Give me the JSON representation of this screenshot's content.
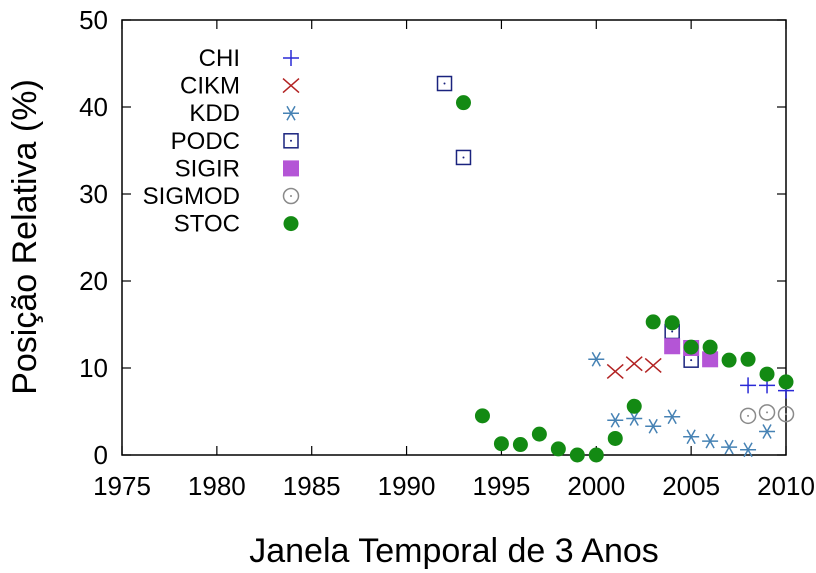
{
  "chart_data": {
    "type": "scatter",
    "xlabel": "Janela Temporal de 3 Anos",
    "ylabel": "Posição Relativa (%)",
    "xlim": [
      1975,
      2010
    ],
    "ylim": [
      0,
      50
    ],
    "xticks": [
      1975,
      1980,
      1985,
      1990,
      1995,
      2000,
      2005,
      2010
    ],
    "yticks": [
      0,
      10,
      20,
      30,
      40,
      50
    ],
    "grid": false,
    "legend_position": "top-left",
    "series": [
      {
        "name": "CHI",
        "marker": "plus",
        "color": "#2a2ad6",
        "points": [
          [
            2008,
            8.0
          ],
          [
            2009,
            8.0
          ],
          [
            2010,
            7.4
          ]
        ]
      },
      {
        "name": "CIKM",
        "marker": "cross",
        "color": "#b22222",
        "points": [
          [
            2001,
            9.6
          ],
          [
            2002,
            10.5
          ],
          [
            2003,
            10.3
          ]
        ]
      },
      {
        "name": "KDD",
        "marker": "asterisk",
        "color": "#4682b4",
        "points": [
          [
            2000,
            11.0
          ],
          [
            2001,
            4.0
          ],
          [
            2002,
            4.2
          ],
          [
            2003,
            3.3
          ],
          [
            2004,
            4.4
          ],
          [
            2005,
            2.1
          ],
          [
            2006,
            1.6
          ],
          [
            2007,
            0.9
          ],
          [
            2008,
            0.6
          ],
          [
            2009,
            2.7
          ]
        ]
      },
      {
        "name": "PODC",
        "marker": "open-square",
        "color": "#1a237e",
        "points": [
          [
            1992,
            42.7
          ],
          [
            1993,
            34.2
          ],
          [
            2004,
            14.2
          ],
          [
            2005,
            10.9
          ]
        ]
      },
      {
        "name": "SIGIR",
        "marker": "filled-square",
        "color": "#b455d6",
        "points": [
          [
            2004,
            12.5
          ],
          [
            2005,
            12.3
          ],
          [
            2006,
            11.0
          ]
        ]
      },
      {
        "name": "SIGMOD",
        "marker": "open-circle",
        "color": "#8a8a8a",
        "points": [
          [
            2008,
            4.5
          ],
          [
            2009,
            4.9
          ],
          [
            2010,
            4.7
          ]
        ]
      },
      {
        "name": "STOC",
        "marker": "filled-circle",
        "color": "#138a13",
        "points": [
          [
            1993,
            40.5
          ],
          [
            1994,
            4.5
          ],
          [
            1995,
            1.3
          ],
          [
            1996,
            1.2
          ],
          [
            1997,
            2.4
          ],
          [
            1998,
            0.7
          ],
          [
            1999,
            0.0
          ],
          [
            2000,
            0.0
          ],
          [
            2001,
            1.9
          ],
          [
            2002,
            5.6
          ],
          [
            2003,
            15.3
          ],
          [
            2004,
            15.2
          ],
          [
            2005,
            12.4
          ],
          [
            2006,
            12.4
          ],
          [
            2007,
            10.9
          ],
          [
            2008,
            11.0
          ],
          [
            2009,
            9.3
          ],
          [
            2010,
            8.4
          ]
        ]
      }
    ]
  }
}
